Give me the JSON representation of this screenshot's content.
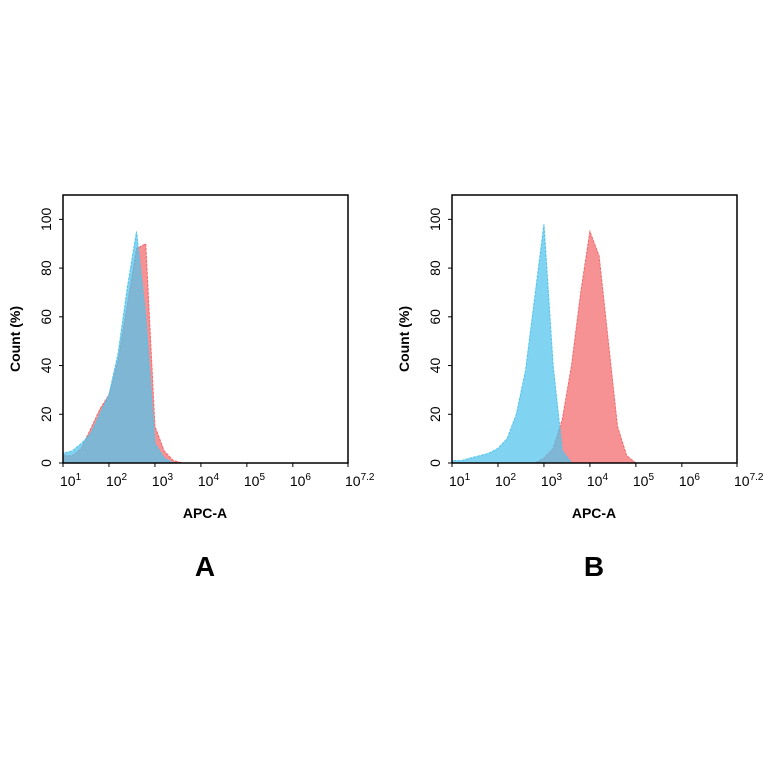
{
  "chart_data": [
    {
      "type": "area",
      "title": "A",
      "xlabel": "APC-A",
      "ylabel": "Count  (%)",
      "xscale": "log",
      "xlim": [
        10,
        15848931.924611134
      ],
      "ylim": [
        0,
        110
      ],
      "xticks": [
        {
          "value": 10,
          "label": "10",
          "exponent": "1"
        },
        {
          "value": 100,
          "label": "10",
          "exponent": "2"
        },
        {
          "value": 1000,
          "label": "10",
          "exponent": "3"
        },
        {
          "value": 10000,
          "label": "10",
          "exponent": "4"
        },
        {
          "value": 100000,
          "label": "10",
          "exponent": "5"
        },
        {
          "value": 1000000,
          "label": "10",
          "exponent": "6"
        },
        {
          "value": 15848931.924611134,
          "label": "10",
          "exponent": "7.2"
        }
      ],
      "yticks": [
        0,
        20,
        40,
        60,
        80,
        100
      ],
      "x": [
        10,
        16,
        25,
        40,
        63,
        100,
        158,
        251,
        398,
        631,
        1000,
        1585,
        2512,
        3981,
        6310,
        10000
      ],
      "series": [
        {
          "color": "#f2686b",
          "values": [
            3,
            3,
            6,
            14,
            22,
            28,
            42,
            65,
            88,
            90,
            15,
            5,
            1,
            0,
            0,
            0
          ]
        },
        {
          "color": "#4fc3ec",
          "values": [
            4,
            5,
            8,
            12,
            20,
            28,
            45,
            72,
            95,
            60,
            8,
            2,
            0,
            0,
            0,
            0
          ]
        }
      ]
    },
    {
      "type": "area",
      "title": "B",
      "xlabel": "APC-A",
      "ylabel": "Count  (%)",
      "xscale": "log",
      "xlim": [
        10,
        15848931.924611134
      ],
      "ylim": [
        0,
        110
      ],
      "xticks": [
        {
          "value": 10,
          "label": "10",
          "exponent": "1"
        },
        {
          "value": 100,
          "label": "10",
          "exponent": "2"
        },
        {
          "value": 1000,
          "label": "10",
          "exponent": "3"
        },
        {
          "value": 10000,
          "label": "10",
          "exponent": "4"
        },
        {
          "value": 100000,
          "label": "10",
          "exponent": "5"
        },
        {
          "value": 1000000,
          "label": "10",
          "exponent": "6"
        },
        {
          "value": 15848931.924611134,
          "label": "10",
          "exponent": "7.2"
        }
      ],
      "yticks": [
        0,
        20,
        40,
        60,
        80,
        100
      ],
      "x": [
        10,
        16,
        25,
        40,
        63,
        100,
        158,
        251,
        398,
        631,
        1000,
        1585,
        2512,
        3981,
        6310,
        10000,
        15849,
        25119,
        39811,
        63096,
        100000,
        158489
      ],
      "series": [
        {
          "color": "#f2686b",
          "values": [
            0,
            0,
            0,
            0,
            0,
            0,
            0,
            0,
            0,
            0,
            2,
            6,
            18,
            40,
            70,
            95,
            85,
            50,
            15,
            3,
            0,
            0
          ]
        },
        {
          "color": "#4fc3ec",
          "values": [
            1,
            1,
            2,
            3,
            4,
            6,
            10,
            20,
            38,
            68,
            98,
            40,
            5,
            0,
            0,
            0,
            0,
            0,
            0,
            0,
            0,
            0
          ]
        }
      ]
    }
  ]
}
